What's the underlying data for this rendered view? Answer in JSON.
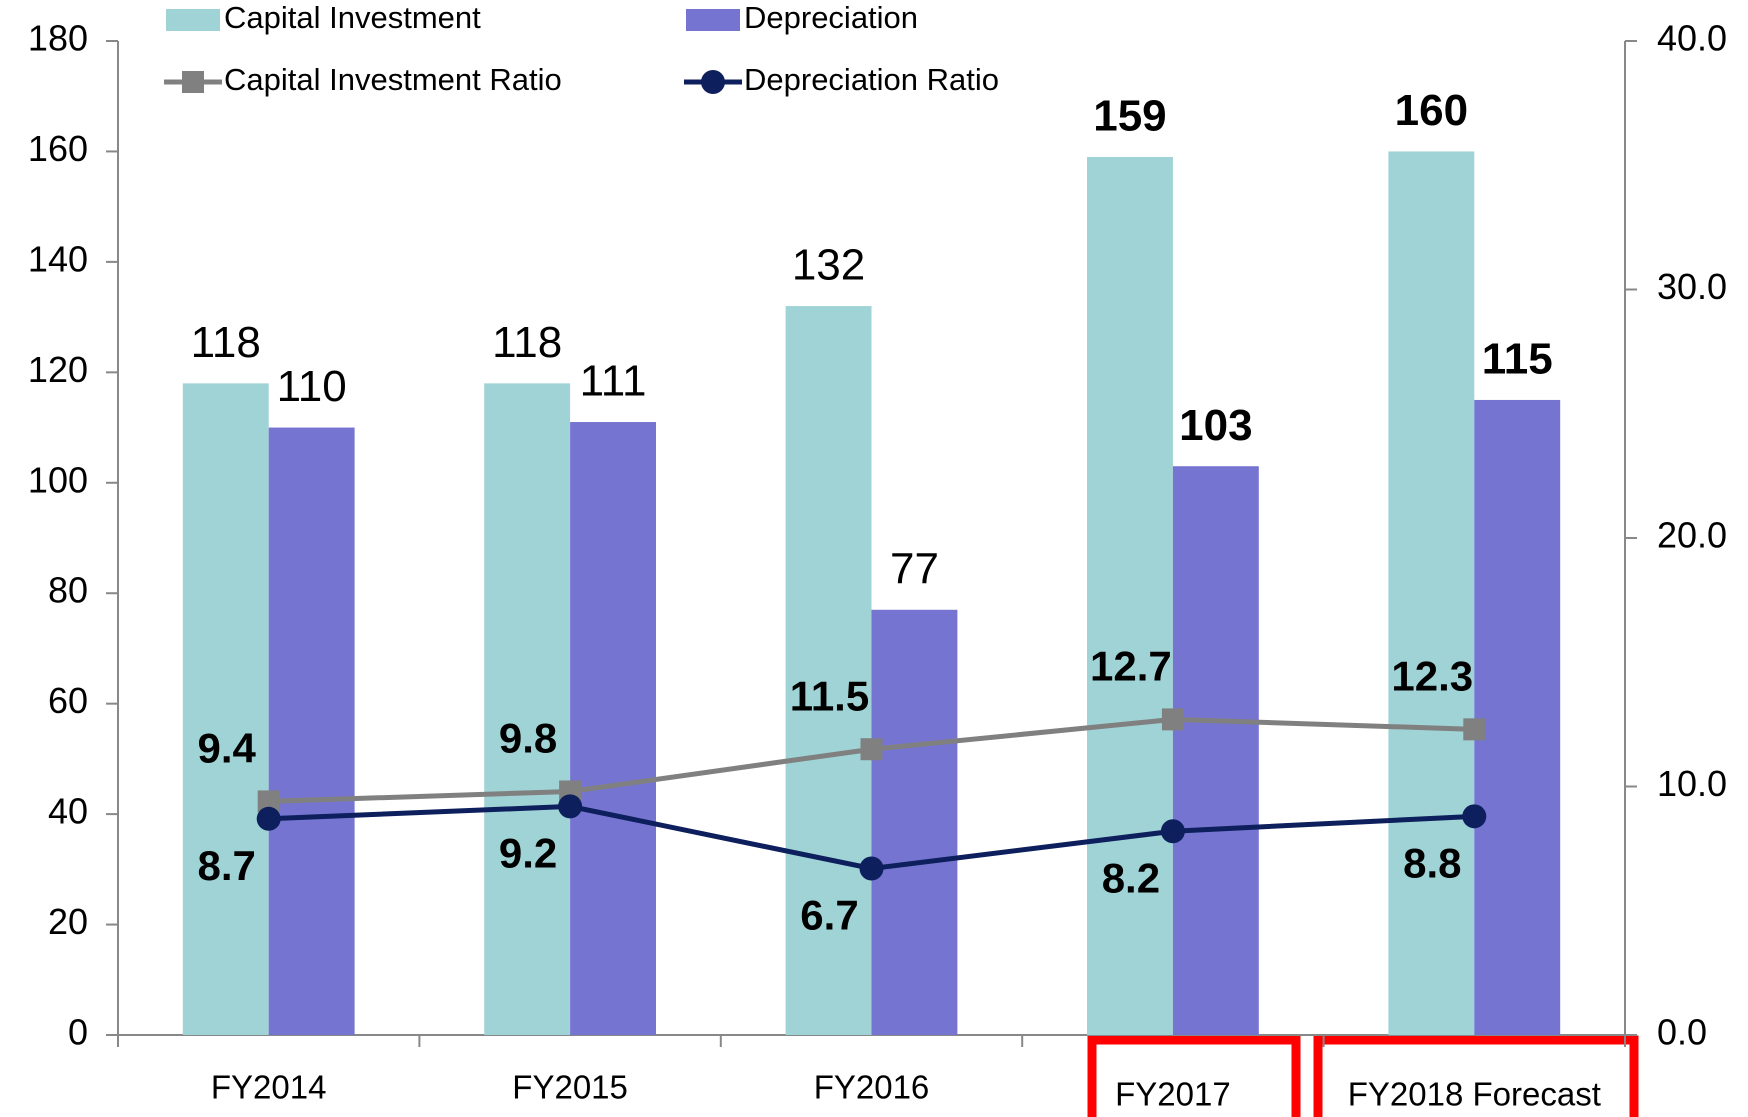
{
  "chart_data": {
    "type": "bar",
    "categories": [
      "FY2014",
      "FY2015",
      "FY2016",
      "FY2017",
      "FY2018 Forecast"
    ],
    "series": [
      {
        "name": "Capital Investment",
        "color": "#9fd3d6",
        "values": [
          118,
          118,
          132,
          159,
          160
        ]
      },
      {
        "name": "Depreciation",
        "color": "#7575d1",
        "values": [
          110,
          111,
          77,
          103,
          115
        ]
      },
      {
        "name": "Capital Investment Ratio",
        "color": "#808080",
        "axis": "y2",
        "type": "line",
        "marker": "square",
        "values": [
          9.4,
          9.8,
          11.5,
          12.7,
          12.3
        ]
      },
      {
        "name": "Depreciation Ratio",
        "color": "#0d1f5c",
        "axis": "y2",
        "type": "line",
        "marker": "circle",
        "values": [
          8.7,
          9.2,
          6.7,
          8.2,
          8.8
        ]
      }
    ],
    "ylim": [
      0,
      180
    ],
    "yticks": [
      0,
      20,
      40,
      60,
      80,
      100,
      120,
      140,
      160,
      180
    ],
    "y2lim": [
      0,
      40
    ],
    "y2ticks": [
      {
        "value": 0,
        "label": "0.0"
      },
      {
        "value": 10,
        "label": "10.0"
      },
      {
        "value": 20,
        "label": "20.0"
      },
      {
        "value": 30,
        "label": "30.0"
      },
      {
        "value": 40,
        "label": "40.0"
      }
    ],
    "grid": false
  }
}
